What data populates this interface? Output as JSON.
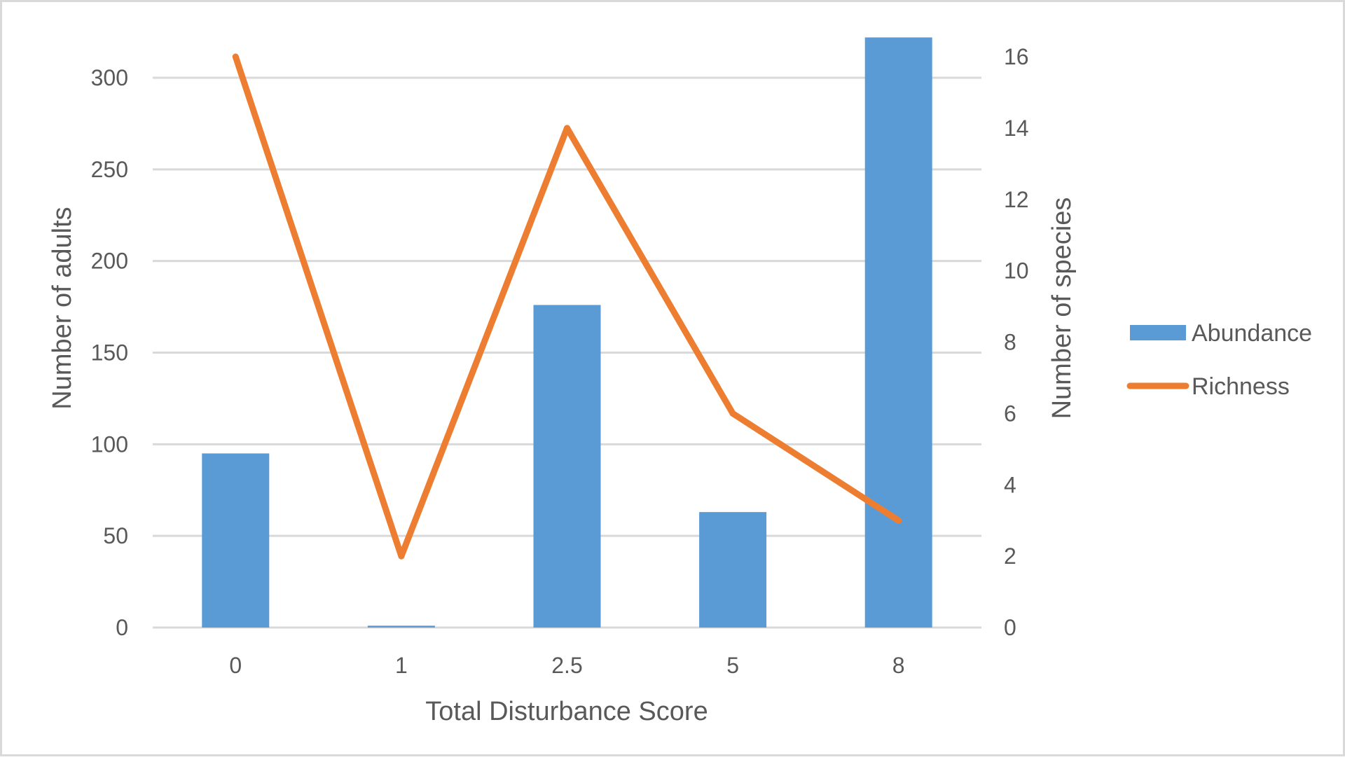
{
  "chart_data": {
    "type": "bar",
    "categories": [
      "0",
      "1",
      "2.5",
      "5",
      "8"
    ],
    "xlabel": "Total Disturbance Score",
    "ylabel": "Number of adults",
    "y2label": "Number of species",
    "ylim": [
      0,
      300
    ],
    "yticks": [
      "0",
      "50",
      "100",
      "150",
      "200",
      "250",
      "300"
    ],
    "y2lim": [
      0,
      16
    ],
    "y2ticks": [
      "0",
      "2",
      "4",
      "6",
      "8",
      "10",
      "12",
      "14",
      "16"
    ],
    "grid": true,
    "legend_position": "right",
    "series": [
      {
        "name": "Abundance",
        "type": "bar",
        "axis": "left",
        "color": "#5b9bd5",
        "values": [
          95,
          1,
          176,
          63,
          322
        ]
      },
      {
        "name": "Richness",
        "type": "line",
        "axis": "right",
        "color": "#ed7d31",
        "values": [
          16,
          2,
          14,
          6,
          3
        ]
      }
    ]
  }
}
